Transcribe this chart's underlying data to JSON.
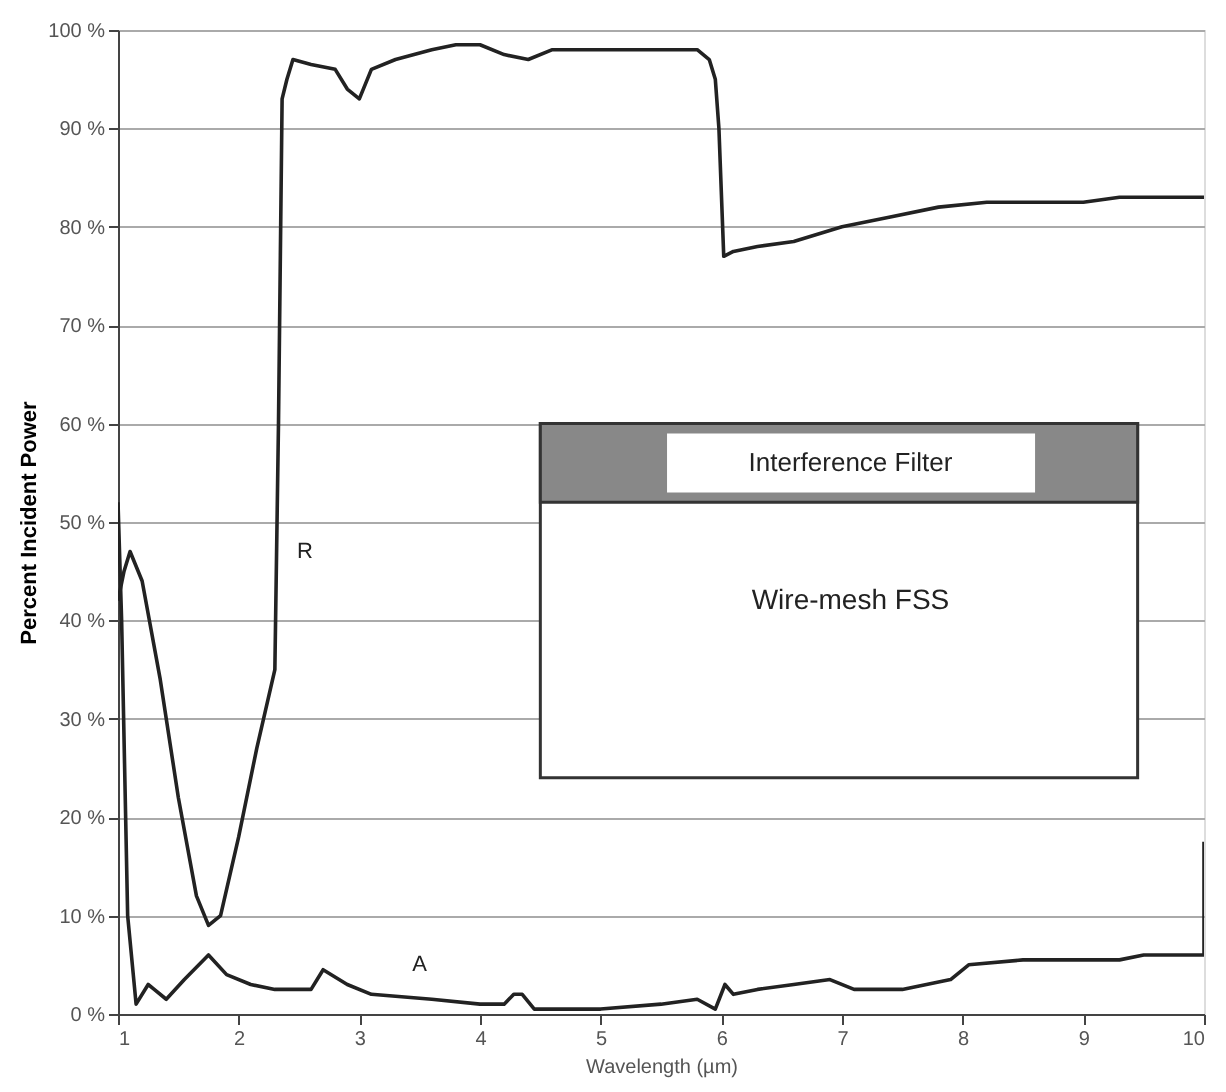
{
  "chart_data": {
    "type": "line",
    "xlabel": "Wavelength (µm)",
    "ylabel": "Percent Incident Power",
    "xlim": [
      1,
      10
    ],
    "xticks": [
      1,
      2,
      3,
      4,
      5,
      6,
      7,
      8,
      9,
      10
    ],
    "ylim": [
      0,
      100
    ],
    "yticks": [
      {
        "value": 0,
        "label": "0 %"
      },
      {
        "value": 10,
        "label": "10 %"
      },
      {
        "value": 20,
        "label": "20 %"
      },
      {
        "value": 30,
        "label": "30 %"
      },
      {
        "value": 40,
        "label": "40 %"
      },
      {
        "value": 50,
        "label": "50 %"
      },
      {
        "value": 60,
        "label": "60 %"
      },
      {
        "value": 70,
        "label": "70 %"
      },
      {
        "value": 80,
        "label": "80 %"
      },
      {
        "value": 90,
        "label": "90 %"
      },
      {
        "value": 100,
        "label": "100 %"
      }
    ],
    "grid": "y",
    "marker": "none",
    "line_style": "solid",
    "series": [
      {
        "name": "R",
        "color": "#222222",
        "x": [
          1.0,
          1.05,
          1.1,
          1.2,
          1.35,
          1.5,
          1.65,
          1.75,
          1.85,
          2.0,
          2.15,
          2.3,
          2.33,
          2.36,
          2.4,
          2.45,
          2.6,
          2.8,
          2.9,
          3.0,
          3.1,
          3.3,
          3.6,
          3.8,
          4.0,
          4.2,
          4.4,
          4.6,
          5.0,
          5.5,
          5.8,
          5.9,
          5.95,
          5.98,
          6.02,
          6.1,
          6.3,
          6.6,
          7.0,
          7.4,
          7.8,
          8.2,
          9.0,
          9.3,
          10.0
        ],
        "values": [
          42,
          45,
          47,
          44,
          34,
          22,
          12,
          9,
          10,
          18,
          27,
          35,
          60,
          93,
          95,
          97,
          96.5,
          96,
          94,
          93,
          96,
          97,
          98,
          98.5,
          98.5,
          97.5,
          97,
          98,
          98,
          98,
          98,
          97,
          95,
          90,
          77,
          77.5,
          78,
          78.5,
          80,
          81,
          82,
          82.5,
          82.5,
          83,
          83
        ]
      },
      {
        "name": "A",
        "color": "#222222",
        "x": [
          1.0,
          1.03,
          1.08,
          1.15,
          1.25,
          1.3,
          1.4,
          1.55,
          1.75,
          1.9,
          2.1,
          2.3,
          2.6,
          2.7,
          2.9,
          3.1,
          3.6,
          4.0,
          4.2,
          4.28,
          4.35,
          4.45,
          5.0,
          5.5,
          5.8,
          5.95,
          6.03,
          6.1,
          6.3,
          6.6,
          6.9,
          7.1,
          7.5,
          7.9,
          8.05,
          8.5,
          9.3,
          9.5,
          10.0,
          10.0
        ],
        "values": [
          52,
          40,
          10,
          1,
          3,
          2.5,
          1.5,
          3.5,
          6,
          4,
          3,
          2.5,
          2.5,
          4.5,
          3,
          2,
          1.5,
          1,
          1,
          2,
          2,
          0.5,
          0.5,
          1,
          1.5,
          0.5,
          3,
          2,
          2.5,
          3,
          3.5,
          2.5,
          2.5,
          3.5,
          5,
          5.5,
          5.5,
          6,
          6,
          17.5
        ]
      }
    ],
    "annotations": [
      "Interference Filter",
      "Wire-mesh FSS"
    ]
  }
}
